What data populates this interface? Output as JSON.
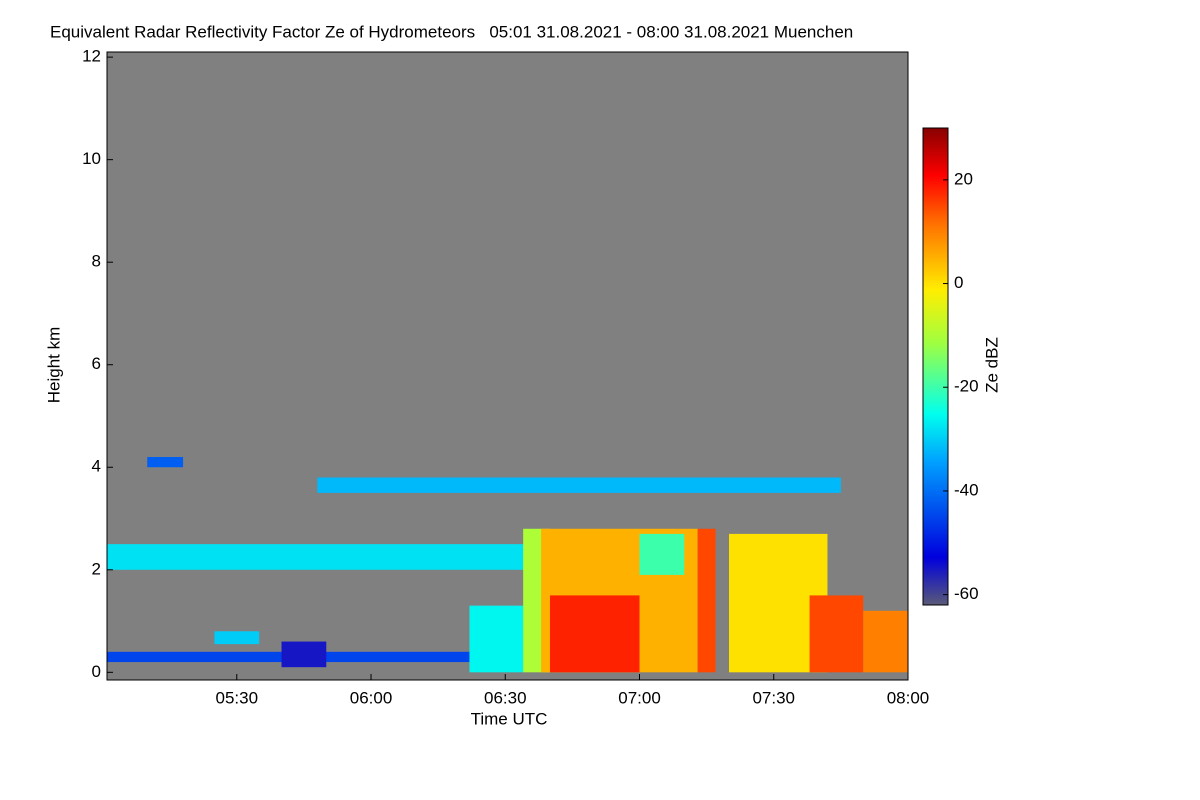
{
  "chart_data": {
    "type": "heatmap",
    "title": "Equivalent Radar Reflectivity Factor Ze of Hydrometeors   05:01 31.08.2021 - 08:00 31.08.2021 Muenchen",
    "x_label": "Time UTC",
    "y_label": "Height km",
    "colorbar_label": "Ze dBZ",
    "xlim": [
      "05:01",
      "08:00"
    ],
    "xticks": [
      "05:30",
      "06:00",
      "06:30",
      "07:00",
      "07:30",
      "08:00"
    ],
    "ylim": [
      -0.15,
      12.1
    ],
    "yticks": [
      0,
      2,
      4,
      6,
      8,
      10,
      12
    ],
    "zlim": [
      -62,
      30
    ],
    "zticks": [
      20,
      0,
      -20,
      -40,
      -60
    ],
    "background": "#808080",
    "cells": [
      {
        "x0": "05:10",
        "x1": "05:18",
        "y0": 4.0,
        "y1": 4.2,
        "value": -42
      },
      {
        "x0": "05:01",
        "x1": "06:35",
        "y0": 2.0,
        "y1": 2.5,
        "value": -28
      },
      {
        "x0": "05:48",
        "x1": "07:45",
        "y0": 3.5,
        "y1": 3.8,
        "value": -32
      },
      {
        "x0": "05:01",
        "x1": "06:22",
        "y0": 0.2,
        "y1": 0.4,
        "value": -45
      },
      {
        "x0": "05:25",
        "x1": "05:35",
        "y0": 0.55,
        "y1": 0.8,
        "value": -30
      },
      {
        "x0": "05:40",
        "x1": "05:50",
        "y0": 0.1,
        "y1": 0.6,
        "value": -55
      },
      {
        "x0": "06:22",
        "x1": "06:34",
        "y0": 0.0,
        "y1": 1.3,
        "value": -26
      },
      {
        "x0": "06:34",
        "x1": "06:40",
        "y0": 0.0,
        "y1": 2.8,
        "value": -10
      },
      {
        "x0": "06:38",
        "x1": "07:13",
        "y0": 0.0,
        "y1": 2.8,
        "value": 5
      },
      {
        "x0": "06:40",
        "x1": "07:00",
        "y0": 0.0,
        "y1": 1.5,
        "value": 18
      },
      {
        "x0": "07:00",
        "x1": "07:10",
        "y0": 1.9,
        "y1": 2.7,
        "value": -20
      },
      {
        "x0": "07:13",
        "x1": "07:17",
        "y0": 0.0,
        "y1": 2.8,
        "value": 15
      },
      {
        "x0": "07:20",
        "x1": "07:42",
        "y0": 0.0,
        "y1": 2.7,
        "value": 0
      },
      {
        "x0": "07:38",
        "x1": "07:50",
        "y0": 0.0,
        "y1": 1.5,
        "value": 15
      },
      {
        "x0": "07:50",
        "x1": "08:00",
        "y0": 0.0,
        "y1": 1.2,
        "value": 10
      }
    ]
  }
}
